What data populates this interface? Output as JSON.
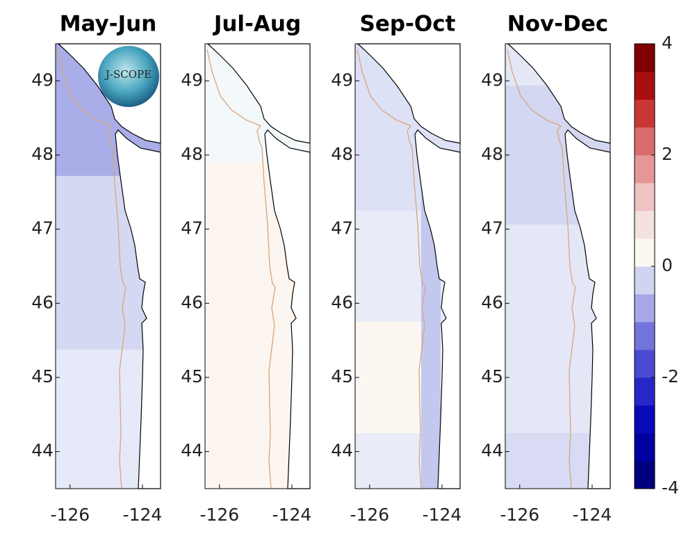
{
  "panels": [
    {
      "title": "May-Jun"
    },
    {
      "title": "Jul-Aug"
    },
    {
      "title": "Sep-Oct"
    },
    {
      "title": "Nov-Dec"
    }
  ],
  "xlim": [
    -126.4,
    -123.5
  ],
  "ylim": [
    43.5,
    49.5
  ],
  "xticks": [
    -126,
    -124
  ],
  "yticks": [
    44,
    45,
    46,
    47,
    48,
    49
  ],
  "logo": "J-SCOPE",
  "colorbar": {
    "lim": [
      -4,
      4
    ],
    "ticks": [
      -4,
      -2,
      0,
      2,
      4
    ],
    "colors": [
      "#00007f",
      "#0000a0",
      "#0a0ab8",
      "#2727c8",
      "#4a4ad3",
      "#7373dc",
      "#a5a7e7",
      "#d1d4f1",
      "#fdf7f2",
      "#f4e2de",
      "#efc3c2",
      "#e59797",
      "#d96c6c",
      "#c93636",
      "#a80f0f",
      "#7f0000"
    ]
  }
}
